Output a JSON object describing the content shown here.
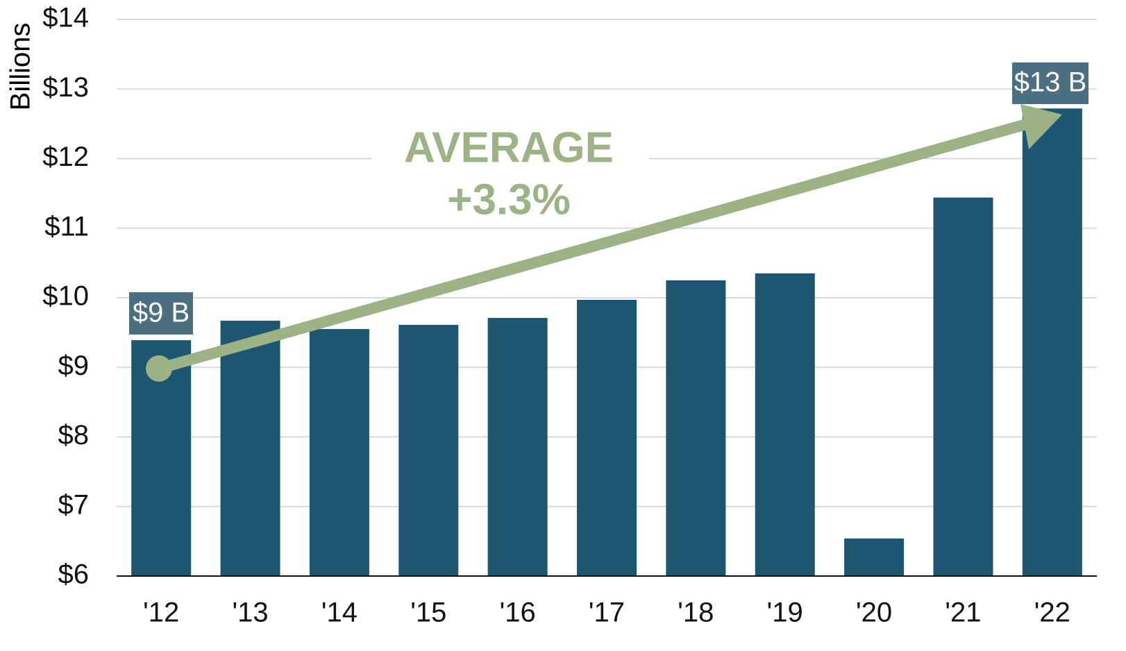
{
  "chart_data": {
    "type": "bar",
    "y_label": "Billions",
    "categories": [
      "'12",
      "'13",
      "'14",
      "'15",
      "'16",
      "'17",
      "'18",
      "'19",
      "'20",
      "'21",
      "'22"
    ],
    "values": [
      9.39,
      9.67,
      9.55,
      9.61,
      9.71,
      9.97,
      10.25,
      10.35,
      6.54,
      11.44,
      12.72
    ],
    "color": "#1e5570",
    "ylim": [
      6,
      14
    ],
    "yticks": [
      {
        "value": 6,
        "label": "$6"
      },
      {
        "value": 7,
        "label": "$7"
      },
      {
        "value": 8,
        "label": "$8"
      },
      {
        "value": 9,
        "label": "$9"
      },
      {
        "value": 10,
        "label": "$10"
      },
      {
        "value": 11,
        "label": "$11"
      },
      {
        "value": 12,
        "label": "$12"
      },
      {
        "value": 13,
        "label": "$13"
      },
      {
        "value": 14,
        "label": "$14"
      }
    ],
    "grid": true,
    "annotations": [
      "$9 B",
      "$13 B",
      "AVERAGE",
      "+3.3%"
    ]
  }
}
